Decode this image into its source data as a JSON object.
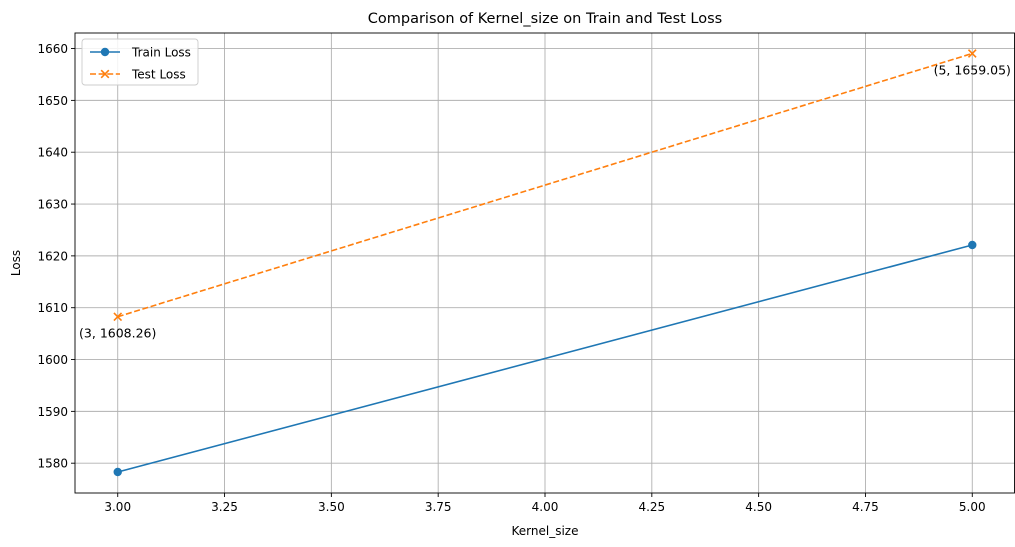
{
  "chart_data": {
    "type": "line",
    "title": "Comparison of Kernel_size on Train and Test Loss",
    "xlabel": "Kernel_size",
    "ylabel": "Loss",
    "xlim": [
      2.9,
      5.1
    ],
    "ylim": [
      1574.25,
      1663.0
    ],
    "x_ticks": [
      3.0,
      3.25,
      3.5,
      3.75,
      4.0,
      4.25,
      4.5,
      4.75,
      5.0
    ],
    "x_tick_labels": [
      "3.00",
      "3.25",
      "3.50",
      "3.75",
      "4.00",
      "4.25",
      "4.50",
      "4.75",
      "5.00"
    ],
    "y_ticks": [
      1580,
      1590,
      1600,
      1610,
      1620,
      1630,
      1640,
      1650,
      1660
    ],
    "y_tick_labels": [
      "1580",
      "1590",
      "1600",
      "1610",
      "1620",
      "1630",
      "1640",
      "1650",
      "1660"
    ],
    "grid": true,
    "legend_position": "top-left",
    "series": [
      {
        "name": "Train Loss",
        "x": [
          3,
          5
        ],
        "y": [
          1578.3,
          1622.1
        ],
        "color": "#1f77b4",
        "linestyle": "solid",
        "marker": "circle"
      },
      {
        "name": "Test Loss",
        "x": [
          3,
          5
        ],
        "y": [
          1608.26,
          1659.05
        ],
        "color": "#ff7f0e",
        "linestyle": "dashed",
        "marker": "x"
      }
    ],
    "annotations": [
      {
        "text": "(3, 1608.26)",
        "x": 3,
        "y": 1608.26
      },
      {
        "text": "(5, 1659.05)",
        "x": 5,
        "y": 1659.05
      }
    ]
  }
}
